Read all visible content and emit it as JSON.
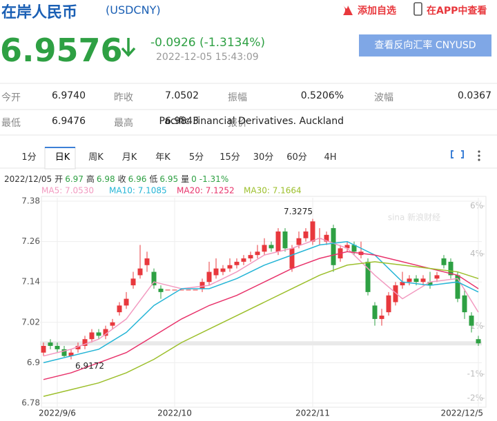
{
  "header": {
    "title": "在岸人民币",
    "code": "(USDCNY)",
    "add": "添加自选",
    "app": "在APP中查看"
  },
  "quote": {
    "price": "6.9576",
    "change": "-0.0926 (-1.3134%)",
    "time": "2022-12-05 15:43:09",
    "button": "查看反向汇率 CNYUSD"
  },
  "stats": {
    "rows": [
      [
        "今开",
        "6.9740",
        "昨收",
        "7.0502",
        "振幅",
        "0.5206%",
        "波幅",
        "0.0367"
      ],
      [
        "最低",
        "6.9476",
        "最高",
        "6.9843",
        "报价",
        "Pacific Financial Derivatives. Auckland"
      ]
    ]
  },
  "tabs": [
    "1分",
    "日K",
    "周K",
    "月K",
    "年K",
    "5分",
    "15分",
    "30分",
    "60分",
    "4H"
  ],
  "info": {
    "date": "2022/12/05",
    "items": [
      [
        "开",
        "6.97"
      ],
      [
        "高",
        "6.98"
      ],
      [
        "收",
        "6.96"
      ],
      [
        "低",
        "6.95"
      ],
      [
        "量",
        "0"
      ]
    ],
    "change": "-1.31%"
  },
  "chart_data": {
    "type": "candlestick",
    "watermark": "sina 新浪财经",
    "categories": [
      null,
      null,
      "2022/9/6",
      null,
      null,
      null,
      null,
      null,
      null,
      null,
      null,
      null,
      null,
      null,
      null,
      null,
      null,
      null,
      null,
      "2022/10",
      null,
      null,
      null,
      null,
      null,
      null,
      null,
      null,
      null,
      null,
      null,
      null,
      null,
      null,
      null,
      null,
      null,
      null,
      null,
      "2022/11",
      null,
      null,
      null,
      null,
      null,
      null,
      null,
      null,
      null,
      null,
      null,
      null,
      null,
      null,
      null,
      null,
      null,
      null,
      null,
      null,
      null,
      null,
      null,
      "2022/12/5"
    ],
    "up_color": "#e8383d",
    "down_color": "#2ea043",
    "open": [
      6.93,
      6.96,
      6.95,
      6.94,
      6.92,
      6.94,
      6.95,
      6.97,
      6.99,
      6.98,
      7.01,
      7.05,
      7.07,
      7.13,
      7.16,
      7.19,
      7.17,
      7.12,
      7.117,
      7.117,
      7.117,
      7.117,
      7.117,
      7.12,
      7.14,
      7.16,
      7.17,
      7.18,
      7.19,
      7.2,
      7.21,
      7.22,
      7.23,
      7.25,
      7.23,
      7.29,
      7.18,
      7.25,
      7.27,
      7.26,
      7.27,
      7.26,
      7.3,
      7.21,
      7.24,
      7.25,
      7.22,
      7.2,
      7.07,
      7.03,
      7.05,
      7.08,
      7.13,
      7.14,
      7.15,
      7.14,
      7.14,
      7.15,
      7.21,
      7.2,
      7.16,
      7.1,
      7.04,
      6.97
    ],
    "high": [
      6.96,
      6.97,
      6.96,
      6.95,
      6.94,
      6.96,
      6.98,
      7.0,
      7.0,
      7.01,
      7.03,
      7.08,
      7.11,
      7.17,
      7.25,
      7.23,
      7.18,
      7.13,
      7.117,
      7.117,
      7.117,
      7.117,
      7.117,
      7.15,
      7.2,
      7.21,
      7.19,
      7.21,
      7.21,
      7.22,
      7.23,
      7.25,
      7.27,
      7.26,
      7.3,
      7.3,
      7.25,
      7.29,
      7.3,
      7.3275,
      7.3,
      7.29,
      7.31,
      7.25,
      7.26,
      7.26,
      7.26,
      7.21,
      7.08,
      7.06,
      7.11,
      7.14,
      7.17,
      7.16,
      7.16,
      7.16,
      7.17,
      7.17,
      7.22,
      7.21,
      7.17,
      7.12,
      7.05,
      6.98
    ],
    "low": [
      6.92,
      6.94,
      6.93,
      6.9172,
      6.91,
      6.93,
      6.94,
      6.96,
      6.97,
      6.97,
      7.0,
      7.04,
      7.06,
      7.12,
      7.15,
      7.17,
      7.12,
      7.09,
      7.117,
      7.117,
      7.117,
      7.117,
      7.117,
      7.11,
      7.13,
      7.15,
      7.16,
      7.17,
      7.18,
      7.19,
      7.2,
      7.21,
      7.22,
      7.23,
      7.22,
      7.23,
      7.17,
      7.24,
      7.26,
      7.25,
      7.25,
      7.25,
      7.17,
      7.2,
      7.23,
      7.22,
      7.21,
      7.1,
      7.01,
      7.01,
      7.04,
      7.07,
      7.12,
      7.13,
      7.13,
      7.13,
      7.12,
      7.14,
      7.18,
      7.15,
      7.08,
      7.03,
      6.99,
      6.95
    ],
    "close": [
      6.95,
      6.95,
      6.94,
      6.92,
      6.93,
      6.95,
      6.97,
      6.99,
      6.98,
      7.0,
      7.02,
      7.07,
      7.09,
      7.15,
      7.18,
      7.21,
      7.13,
      7.11,
      7.117,
      7.117,
      7.117,
      7.117,
      7.117,
      7.14,
      7.17,
      7.18,
      7.18,
      7.19,
      7.2,
      7.21,
      7.22,
      7.23,
      7.25,
      7.24,
      7.29,
      7.24,
      7.24,
      7.27,
      7.29,
      7.32,
      7.27,
      7.28,
      7.19,
      7.24,
      7.25,
      7.23,
      7.23,
      7.11,
      7.03,
      7.04,
      7.1,
      7.13,
      7.14,
      7.15,
      7.14,
      7.15,
      7.13,
      7.16,
      7.19,
      7.16,
      7.09,
      7.05,
      7.01,
      6.9576
    ],
    "series": [
      {
        "name": "MA5: 7.0530",
        "color": "#f29ac0",
        "x": [
          0,
          4,
          8,
          12,
          16,
          20,
          24,
          28,
          32,
          36,
          40,
          44,
          48,
          52,
          56,
          60,
          63
        ],
        "values": [
          6.92,
          6.94,
          6.97,
          7.03,
          7.14,
          7.12,
          7.13,
          7.17,
          7.22,
          7.24,
          7.27,
          7.24,
          7.16,
          7.09,
          7.14,
          7.15,
          7.05
        ]
      },
      {
        "name": "MA10: 7.1085",
        "color": "#25b5d6",
        "x": [
          0,
          4,
          8,
          12,
          16,
          20,
          24,
          28,
          32,
          36,
          40,
          44,
          48,
          52,
          56,
          60,
          63
        ],
        "values": [
          6.9,
          6.92,
          6.94,
          6.99,
          7.07,
          7.12,
          7.12,
          7.15,
          7.19,
          7.22,
          7.25,
          7.26,
          7.22,
          7.14,
          7.13,
          7.14,
          7.11
        ]
      },
      {
        "name": "MA20: 7.1252",
        "color": "#e8336b",
        "x": [
          0,
          4,
          8,
          12,
          16,
          20,
          24,
          28,
          32,
          36,
          40,
          44,
          48,
          52,
          56,
          60,
          63
        ],
        "values": [
          6.85,
          6.87,
          6.9,
          6.93,
          6.98,
          7.03,
          7.07,
          7.1,
          7.14,
          7.18,
          7.21,
          7.23,
          7.22,
          7.2,
          7.18,
          7.16,
          7.12
        ]
      },
      {
        "name": "MA30: 7.1664",
        "color": "#9cbf2b",
        "x": [
          0,
          4,
          8,
          12,
          16,
          20,
          24,
          28,
          32,
          36,
          40,
          44,
          48,
          52,
          56,
          60,
          63
        ],
        "values": [
          6.8,
          6.82,
          6.84,
          6.87,
          6.91,
          6.96,
          7.0,
          7.04,
          7.08,
          7.12,
          7.16,
          7.19,
          7.2,
          7.19,
          7.18,
          7.17,
          7.15
        ]
      }
    ],
    "annotations": [
      "7.3275",
      "6.9172"
    ],
    "xlim": [
      -0.5,
      63.5
    ],
    "ylim": [
      6.78,
      7.38
    ],
    "yticks": [
      6.78,
      6.9,
      7.02,
      7.14,
      7.26,
      7.38
    ],
    "y2lim": [
      -2.2,
      6.2
    ],
    "y2ticks": [
      {
        "value": -2,
        "label": "-2%"
      },
      {
        "value": -1,
        "label": "-1%"
      },
      {
        "value": 1,
        "label": "1%"
      },
      {
        "value": 4,
        "label": "4%"
      },
      {
        "value": 6,
        "label": "6%"
      }
    ],
    "grid": true
  }
}
